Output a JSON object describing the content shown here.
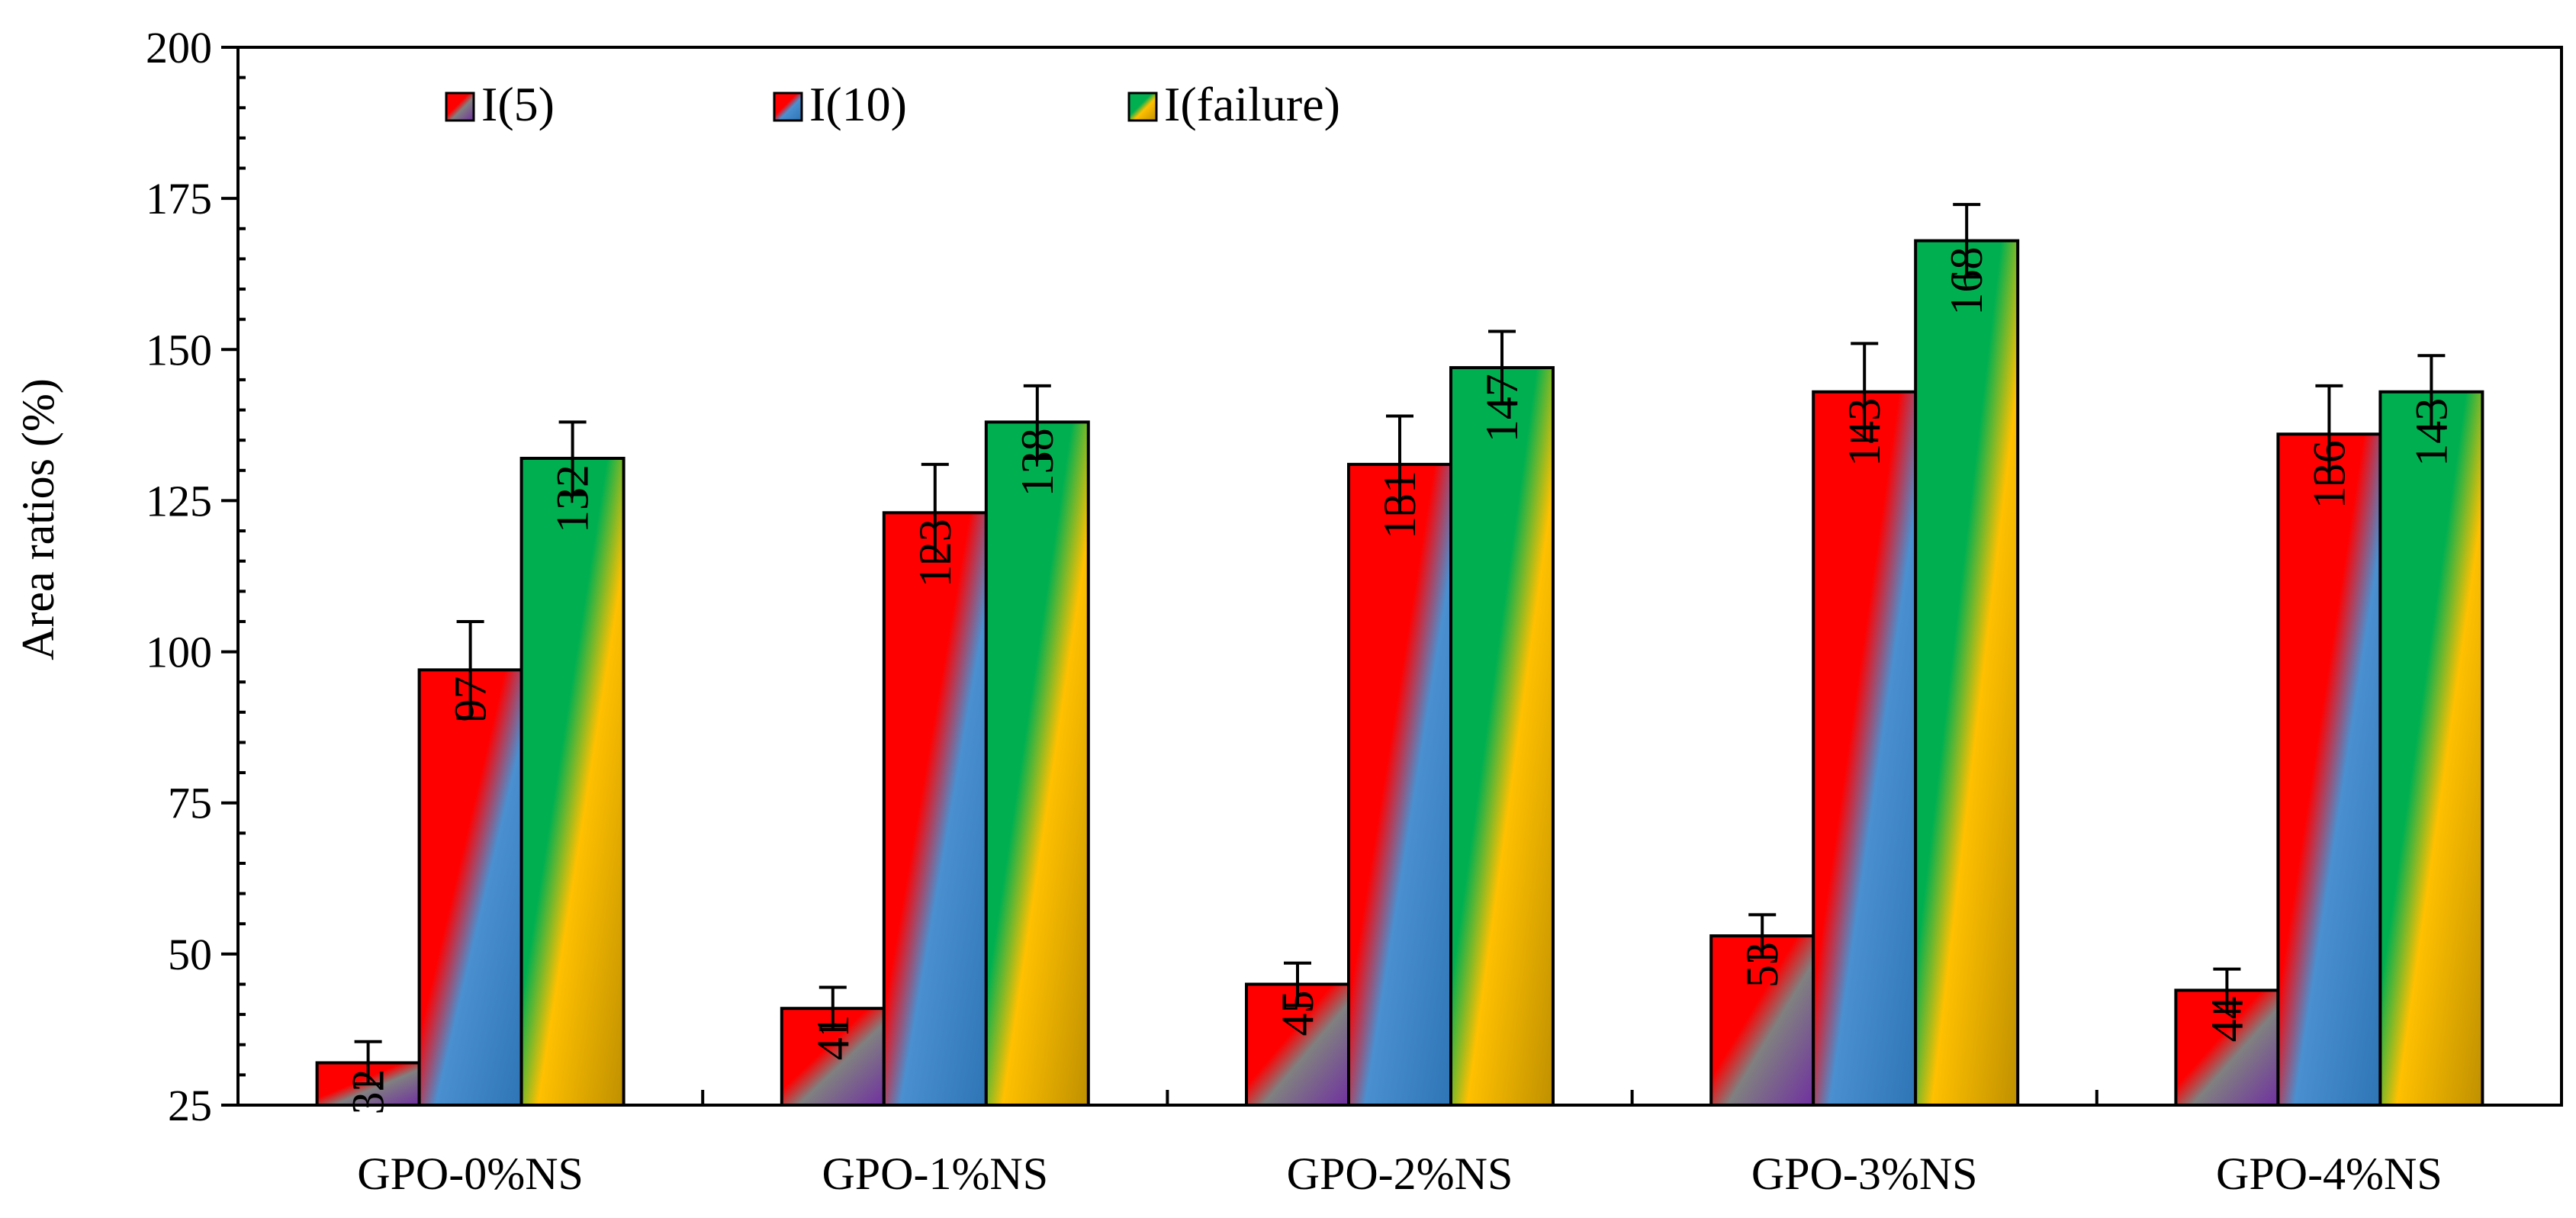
{
  "chart_data": {
    "type": "bar",
    "title": "",
    "xlabel": "",
    "ylabel": "Area ratios (%)",
    "ylim": [
      25,
      200
    ],
    "yticks": [
      25,
      50,
      75,
      100,
      125,
      150,
      175,
      200
    ],
    "y_tick_labels": [
      "25",
      "50",
      "75",
      "100",
      "125",
      "150",
      "175",
      "200"
    ],
    "grid": false,
    "legend_position": "top",
    "categories": [
      "GPO-0%NS",
      "GPO-1%NS",
      "GPO-2%NS",
      "GPO-3%NS",
      "GPO-4%NS"
    ],
    "series": [
      {
        "name": "I(5)",
        "values": [
          32,
          41,
          45,
          53,
          44
        ],
        "error": [
          3.5,
          3.5,
          3.5,
          3.5,
          3.5
        ],
        "data_labels": [
          "32",
          "41",
          "45",
          "53",
          "44"
        ],
        "colors": [
          "#ff0000",
          "#808080",
          "#7030a0"
        ]
      },
      {
        "name": "I(10)",
        "values": [
          97,
          123,
          131,
          143,
          136
        ],
        "error": [
          8,
          8,
          8,
          8,
          8
        ],
        "data_labels": [
          "97",
          "123",
          "131",
          "143",
          "136"
        ],
        "colors": [
          "#ff0000",
          "#4a90d0",
          "#2e75b6"
        ]
      },
      {
        "name": "I(failure)",
        "values": [
          132,
          138,
          147,
          168,
          143
        ],
        "error": [
          6,
          6,
          6,
          6,
          6
        ],
        "data_labels": [
          "132",
          "138",
          "147",
          "168",
          "143"
        ],
        "colors": [
          "#00b050",
          "#ffc000",
          "#bf9000"
        ]
      }
    ]
  }
}
